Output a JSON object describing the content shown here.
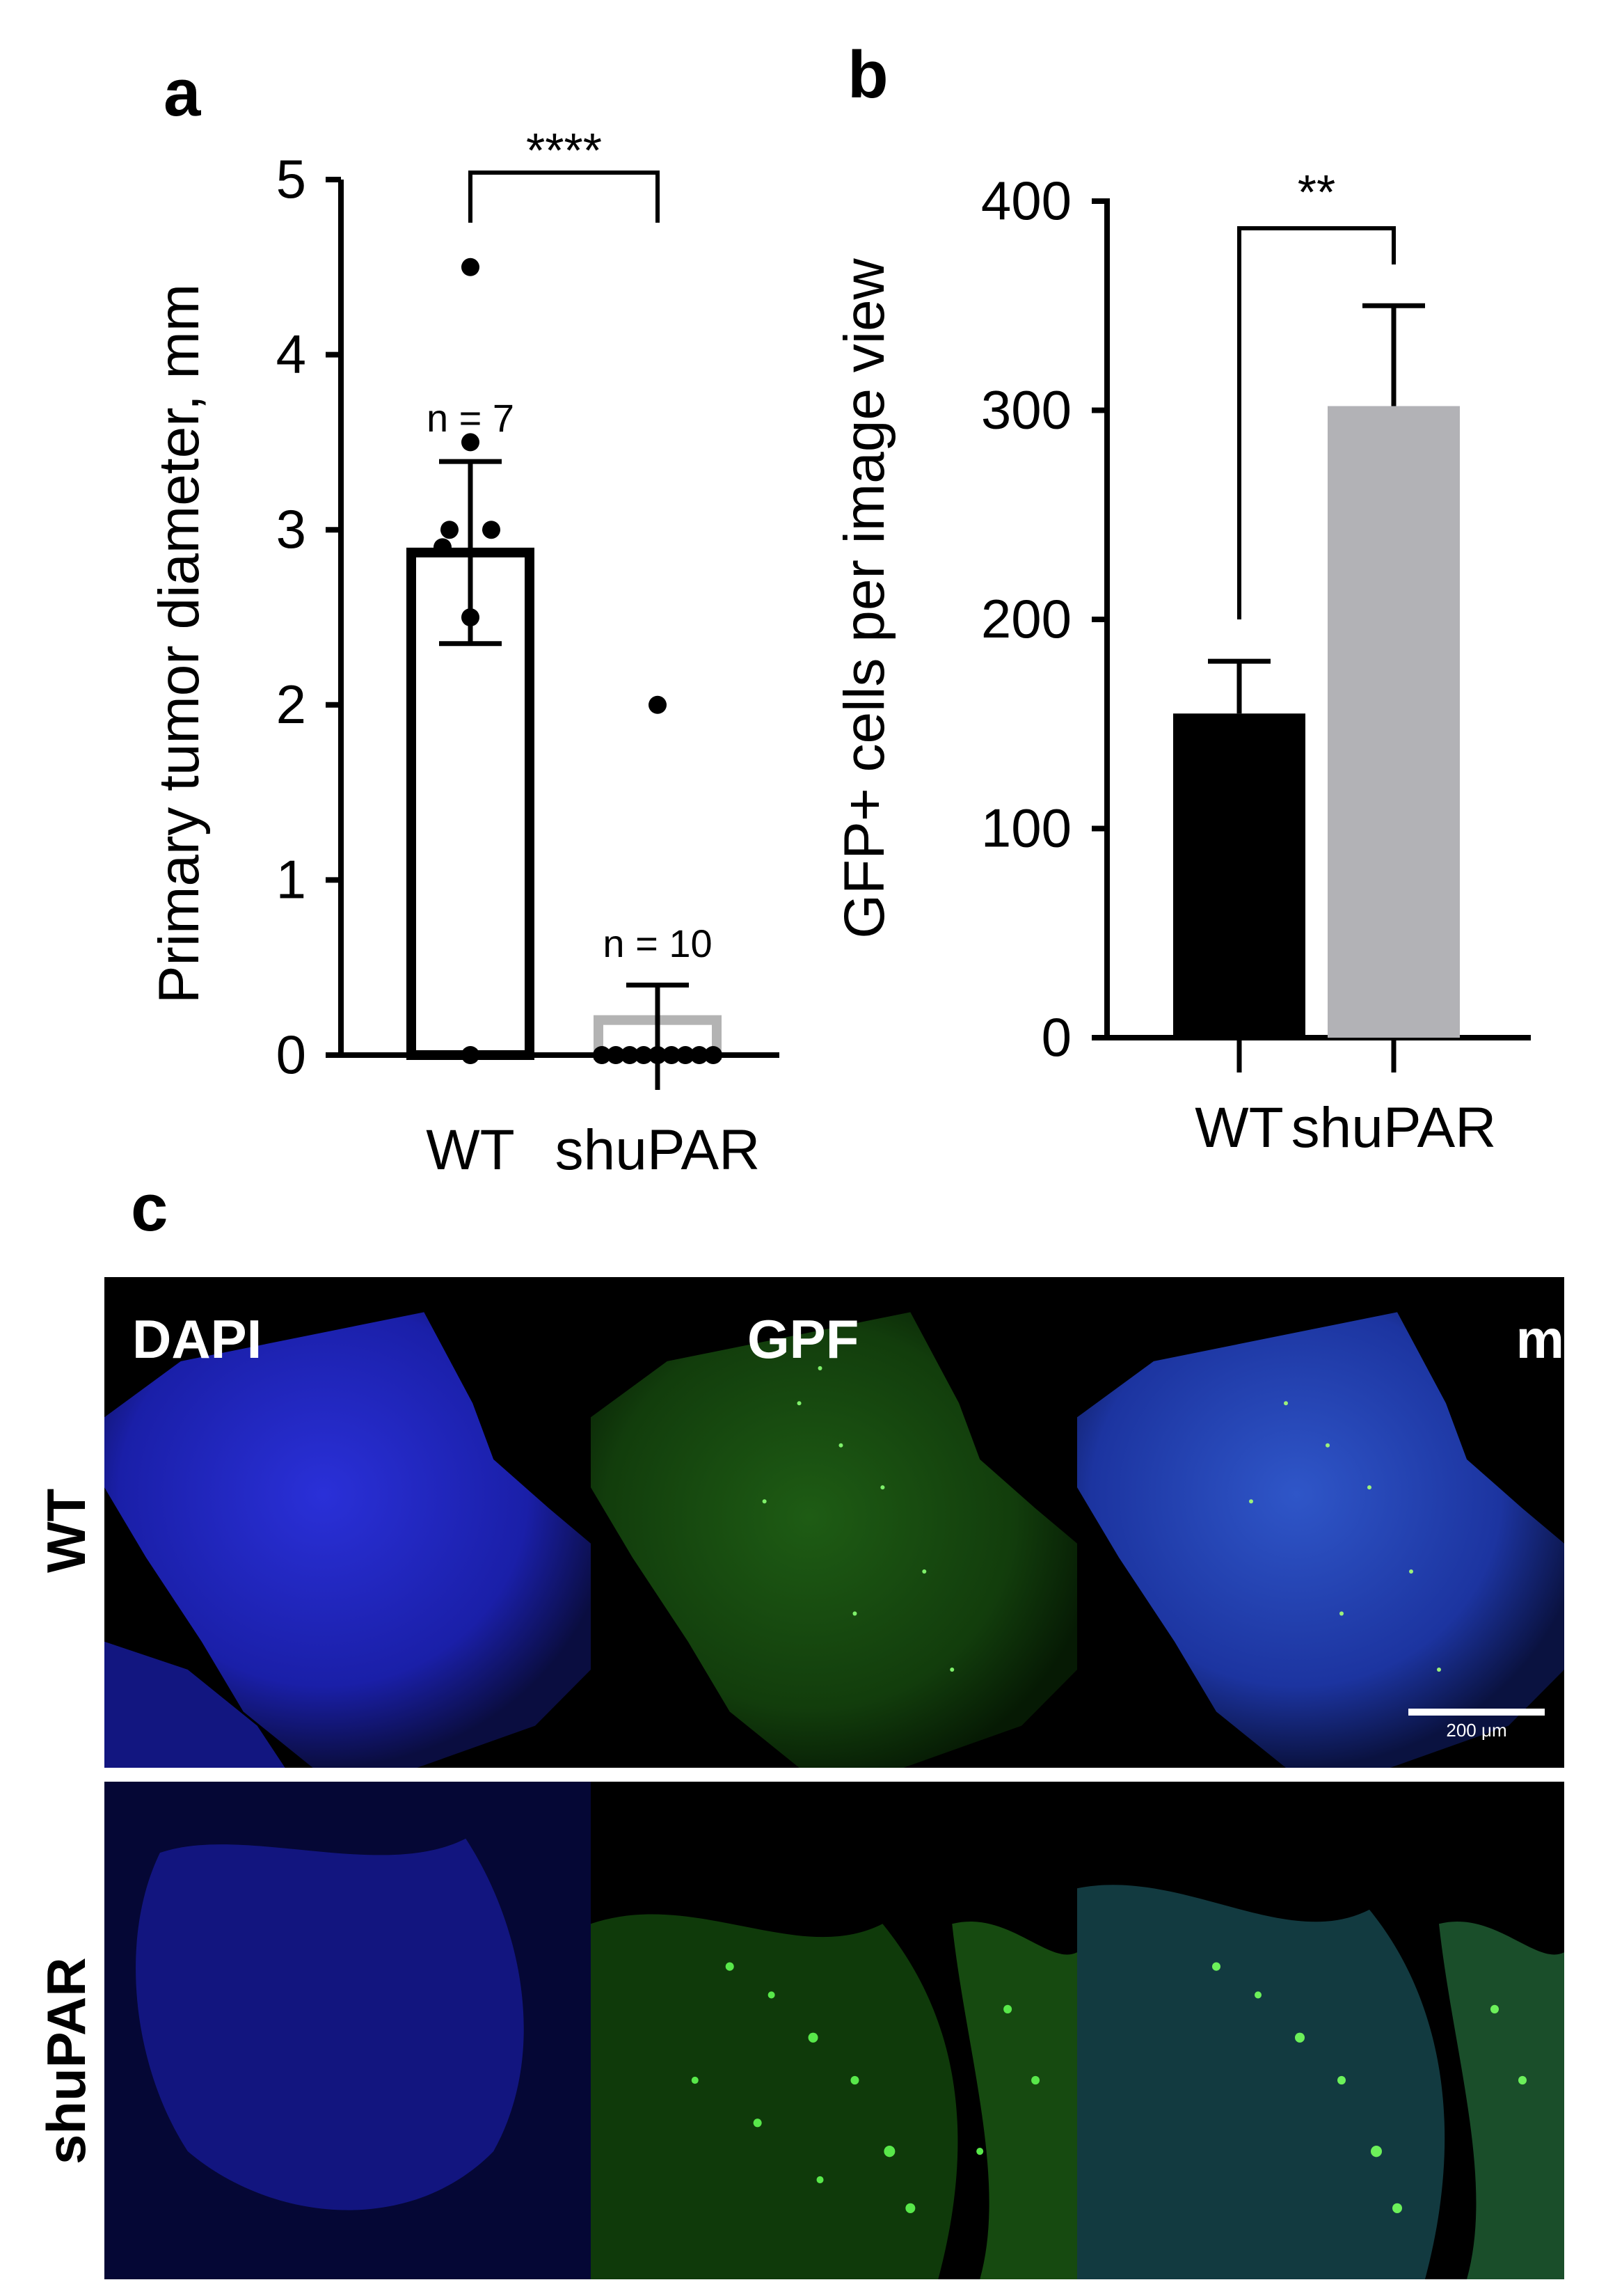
{
  "panels": {
    "a": "a",
    "b": "b",
    "c": "c"
  },
  "chart_data": [
    {
      "type": "bar",
      "panel": "a",
      "ylabel": "Primary tumor diameter, mm",
      "ylim": [
        0,
        5
      ],
      "yticks": [
        "0",
        "1",
        "2",
        "3",
        "4",
        "5"
      ],
      "categories": [
        "WT",
        "shuPAR"
      ],
      "values": [
        2.87,
        0.2
      ],
      "error": [
        0.52,
        0.2
      ],
      "bar_fill": [
        "#ffffff",
        "#ffffff"
      ],
      "bar_stroke": [
        "#000000",
        "#b3b3b3"
      ],
      "points": [
        [
          0,
          2.5,
          2.9,
          3.0,
          3.0,
          3.5,
          4.5
        ],
        [
          0,
          0,
          0,
          0,
          0,
          0,
          0,
          0,
          0,
          2
        ]
      ],
      "n_labels": [
        "n = 7",
        "n = 10"
      ],
      "significance": "****"
    },
    {
      "type": "bar",
      "panel": "b",
      "ylabel": "GFP+ cells per image view",
      "ylim": [
        0,
        400
      ],
      "yticks": [
        "0",
        "100",
        "200",
        "300",
        "400"
      ],
      "categories": [
        "WT",
        "shuPAR"
      ],
      "values": [
        155,
        302
      ],
      "error": [
        25,
        48
      ],
      "bar_fill": [
        "#000000",
        "#b2b2b6"
      ],
      "significance": "**"
    }
  ],
  "microscopy": {
    "channels": [
      "DAPI",
      "GPF",
      "m"
    ],
    "rows": [
      "WT",
      "shuPAR"
    ],
    "scale_bar": "200 μm",
    "colors": {
      "dapi": "#1a22c8",
      "gfp": "#2fc21f",
      "background": "#000000"
    }
  }
}
